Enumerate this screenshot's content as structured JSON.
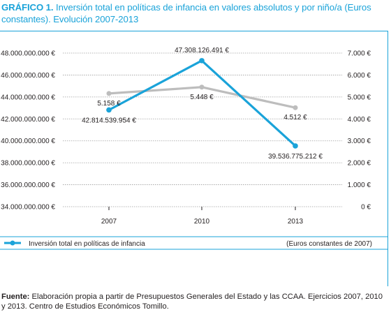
{
  "title": {
    "lead": "GRÁFICO 1.",
    "text": "Inversión total en políticas de infancia en valores absolutos y por niño/a (Euros constantes). Evolución 2007-2013"
  },
  "colors": {
    "accent": "#1aa3d9",
    "series_total": "#1aa3d9",
    "series_per_child": "#bdbdbd",
    "grid": "#9e9e9e"
  },
  "chart_data": {
    "type": "line",
    "title": "Inversión total en políticas de infancia en valores absolutos y por niño/a (Euros constantes). Evolución 2007-2013",
    "categories": [
      "2007",
      "2010",
      "2013"
    ],
    "y_left": {
      "ylim": [
        34000000000,
        48000000000
      ],
      "ticks": [
        34000000000,
        36000000000,
        38000000000,
        40000000000,
        42000000000,
        44000000000,
        46000000000,
        48000000000
      ],
      "tick_labels": [
        "34.000.000.000 €",
        "36.000.000.000 €",
        "38.000.000.000 €",
        "40.000.000.000 €",
        "42.000.000.000 €",
        "44.000.000.000 €",
        "46.000.000.000 €",
        "48.000.000.000 €"
      ]
    },
    "y_right": {
      "ylim": [
        0,
        7000
      ],
      "ticks": [
        0,
        1000,
        2000,
        3000,
        4000,
        5000,
        6000,
        7000
      ],
      "tick_labels": [
        "0 €",
        "1.000 €",
        "2.000 €",
        "3.000 €",
        "4.000 €",
        "5.000 €",
        "6.000 €",
        "7.000 €"
      ]
    },
    "series": [
      {
        "name": "Inversión total en políticas de infancia",
        "axis": "left",
        "values": [
          42814539954,
          47308126491,
          39536775212
        ],
        "labels": [
          "42.814.539.954 €",
          "47.308.126.491 €",
          "39.536.775.212 €"
        ]
      },
      {
        "axis": "right",
        "values": [
          5158,
          5448,
          4512
        ],
        "labels": [
          "5.158 €",
          "5.448 €",
          "4.512 €"
        ]
      }
    ],
    "grid": true,
    "legend": {
      "placement": "bottom-left",
      "note": "(Euros constantes de 2007)"
    }
  },
  "source": {
    "lead": "Fuente:",
    "text": "Elaboración propia a partir de Presupuestos Generales del Estado y las CCAA. Ejercicios 2007, 2010 y 2013. Centro de Estudios Económicos Tomillo."
  }
}
